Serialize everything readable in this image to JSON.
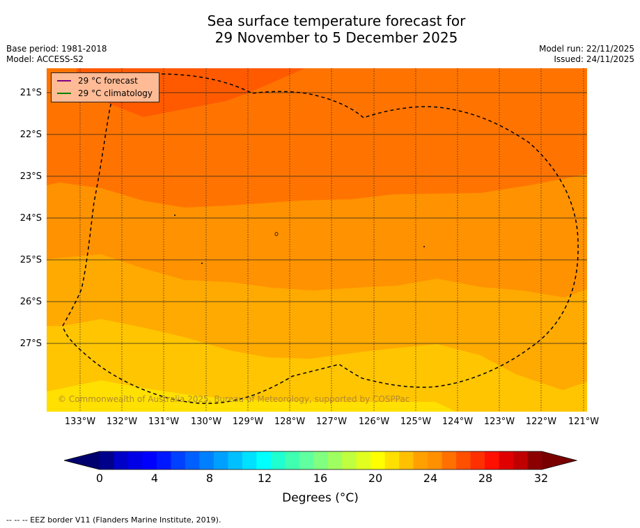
{
  "header": {
    "title_line1": "Sea surface temperature forecast for",
    "title_line2": "29 November to 5 December 2025",
    "base_period": "Base period: 1981-2018",
    "model": "Model: ACCESS-S2",
    "model_run": "Model run: 22/11/2025",
    "issued": "Issued: 24/11/2025"
  },
  "map": {
    "lat_labels": [
      "21°S",
      "22°S",
      "23°S",
      "24°S",
      "25°S",
      "26°S",
      "27°S"
    ],
    "lon_labels": [
      "133°W",
      "132°W",
      "131°W",
      "130°W",
      "129°W",
      "128°W",
      "127°W",
      "126°W",
      "125°W",
      "124°W",
      "123°W",
      "122°W",
      "121°W"
    ],
    "legend": [
      {
        "label": "29 °C  forecast",
        "color": "#800080"
      },
      {
        "label": "29 °C  climatology",
        "color": "#008000"
      }
    ],
    "copyright": "© Commonwealth of Australia 2025, Bureau of Meteorology, supported by COSPPac",
    "bands": [
      {
        "temp": "29",
        "color": "#ff5a00"
      },
      {
        "temp": "28",
        "color": "#ff7400"
      },
      {
        "temp": "27",
        "color": "#ff9200"
      },
      {
        "temp": "26",
        "color": "#ffaa00"
      },
      {
        "temp": "25",
        "color": "#ffc500"
      },
      {
        "temp": "24",
        "color": "#ffe000"
      }
    ]
  },
  "colorbar": {
    "ticks": [
      "0",
      "4",
      "8",
      "12",
      "16",
      "20",
      "24",
      "28",
      "32"
    ],
    "title": "Degrees (°C)",
    "colors": [
      "#00008b",
      "#0000c8",
      "#0000e6",
      "#0000ff",
      "#0018ff",
      "#0040ff",
      "#0060ff",
      "#0080ff",
      "#00a0ff",
      "#00c0ff",
      "#00e0ff",
      "#00ffff",
      "#20ffd0",
      "#40ffb0",
      "#60ffa0",
      "#80ff80",
      "#a0ff60",
      "#c0ff40",
      "#e0ff20",
      "#ffff00",
      "#ffe000",
      "#ffc000",
      "#ffa000",
      "#ff9000",
      "#ff7000",
      "#ff5000",
      "#ff3000",
      "#ff1000",
      "#e00000",
      "#c00000",
      "#8b0000"
    ],
    "under_color": "#00006e",
    "over_color": "#7a0000"
  },
  "footer": {
    "eez_note": "--  --  -- EEZ border V11 (Flanders Marine Institute, 2019)."
  }
}
